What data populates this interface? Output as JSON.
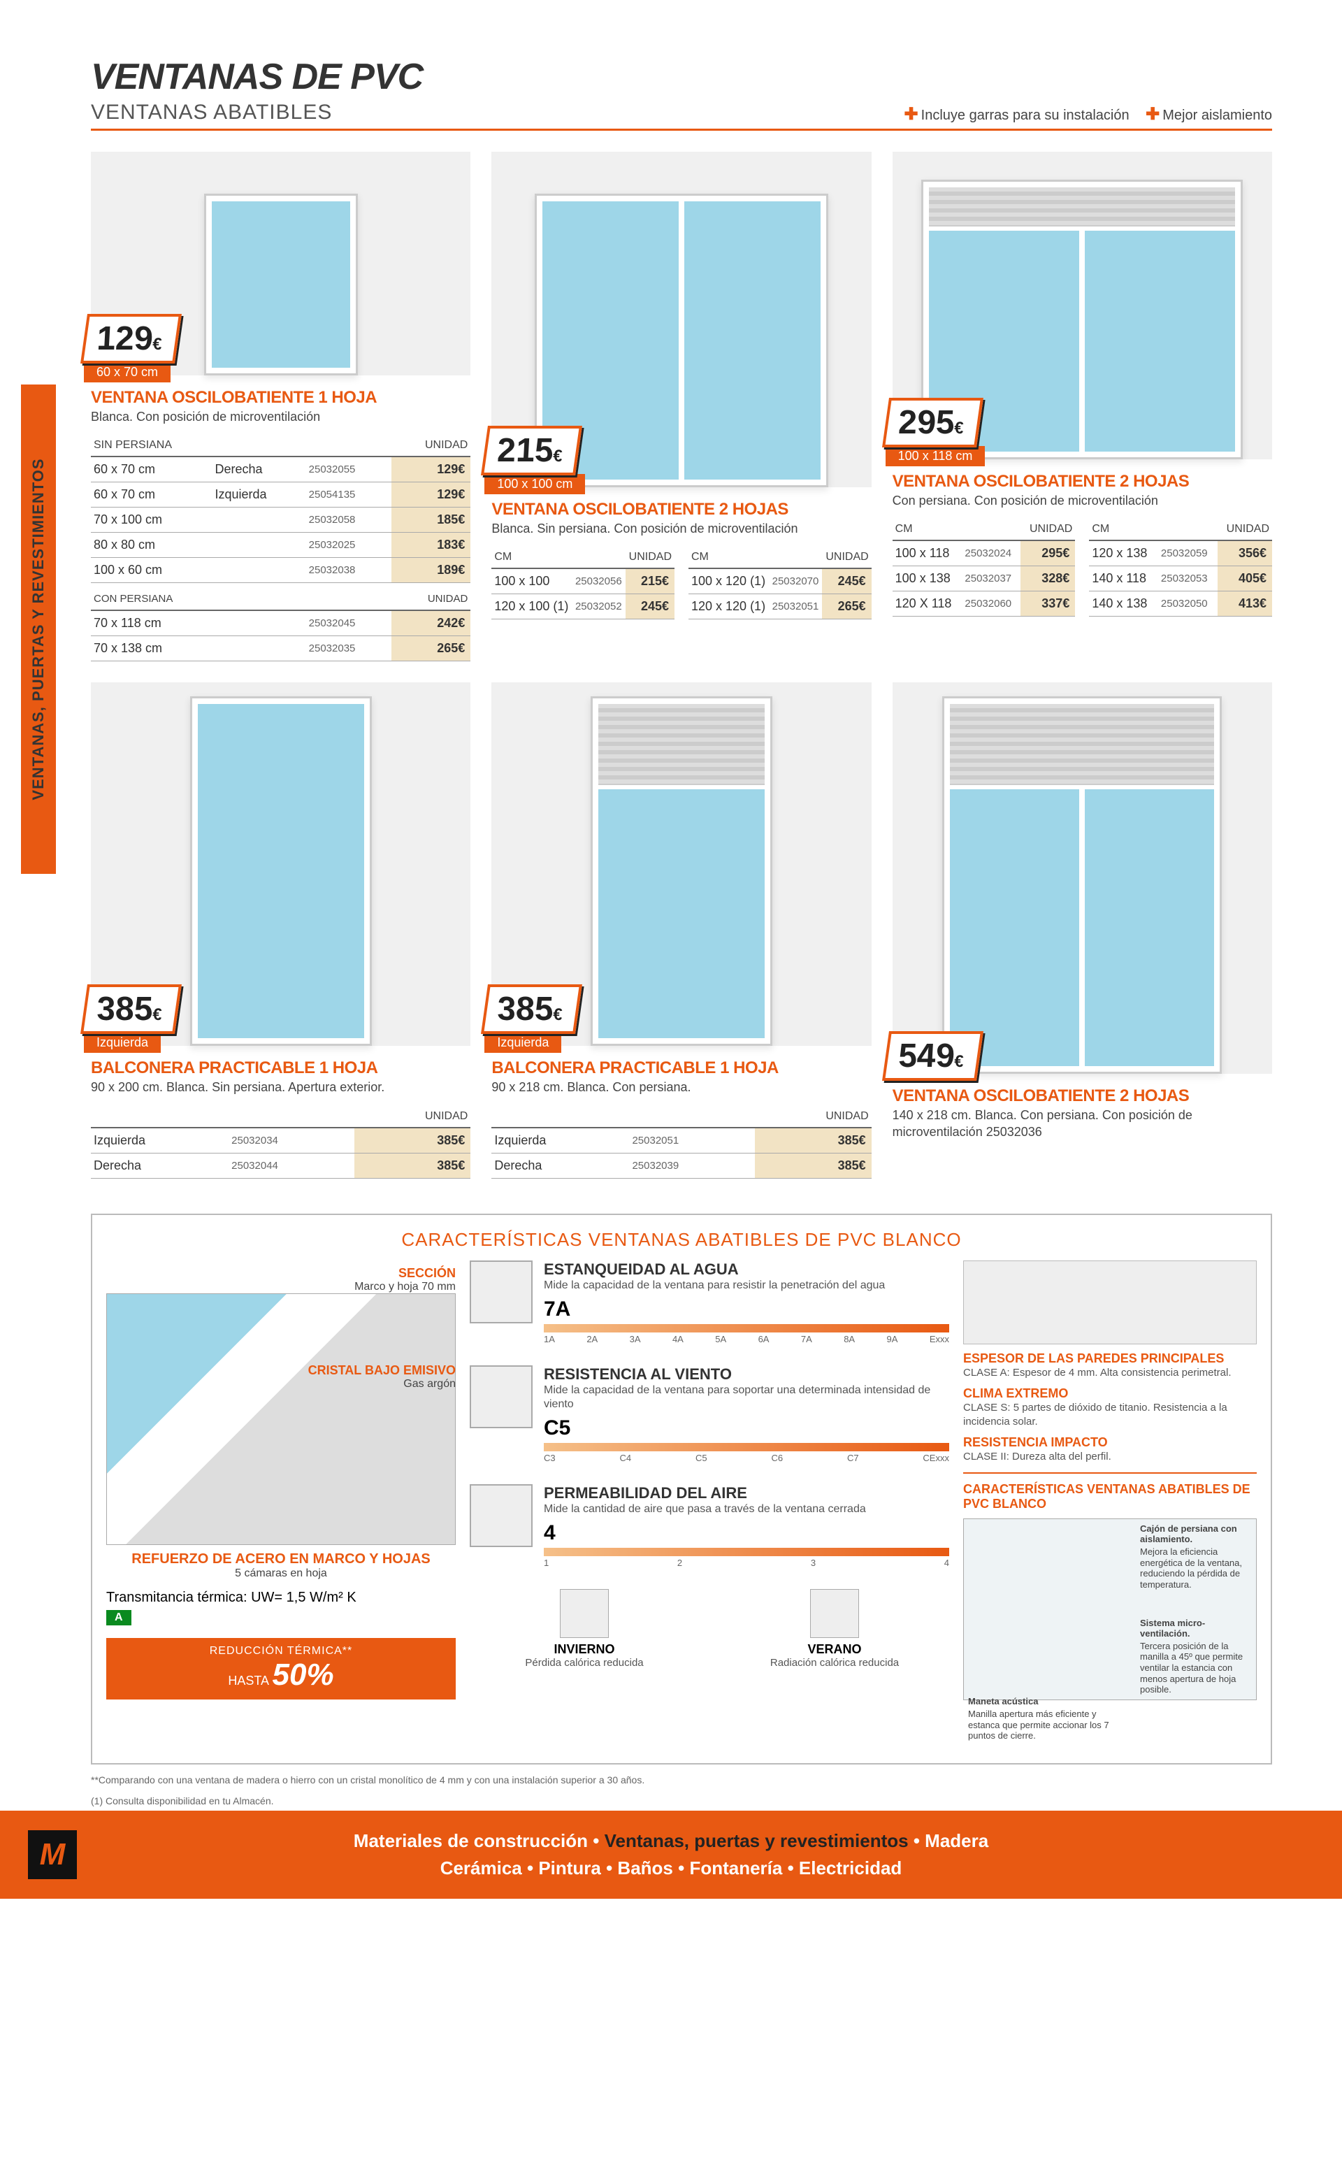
{
  "colors": {
    "accent": "#e85912",
    "glass": "#9ed6e8",
    "priceBg": "#f2e3c4"
  },
  "side_label": "VENTANAS, PUERTAS Y REVESTIMIENTOS",
  "header": {
    "title": "VENTANAS DE PVC",
    "subtitle": "VENTANAS ABATIBLES",
    "badge1": "Incluye garras para su instalación",
    "badge2": "Mejor aislamiento"
  },
  "p1": {
    "price": "129",
    "eur": "€",
    "size": "60 x 70 cm",
    "title": "VENTANA OSCILOBATIENTE 1 HOJA",
    "desc": "Blanca. Con posición de microventilación",
    "group1_label": "SIN PERSIANA",
    "unit": "UNIDAD",
    "rows1": [
      [
        "60 x 70 cm",
        "Derecha",
        "25032055",
        "129€"
      ],
      [
        "60 x 70 cm",
        "Izquierda",
        "25054135",
        "129€"
      ],
      [
        "70 x 100 cm",
        "",
        "25032058",
        "185€"
      ],
      [
        "80 x 80 cm",
        "",
        "25032025",
        "183€"
      ],
      [
        "100 x 60 cm",
        "",
        "25032038",
        "189€"
      ]
    ],
    "group2_label": "CON PERSIANA",
    "rows2": [
      [
        "70 x 118 cm",
        "",
        "25032045",
        "242€"
      ],
      [
        "70 x 138 cm",
        "",
        "25032035",
        "265€"
      ]
    ]
  },
  "p2": {
    "price": "215",
    "eur": "€",
    "size": "100 x 100 cm",
    "title": "VENTANA OSCILOBATIENTE 2 HOJAS",
    "desc": "Blanca. Sin persiana. Con posición de microventilación",
    "h1": "CM",
    "h2": "UNIDAD",
    "h3": "CM",
    "h4": "UNIDAD",
    "rowsL": [
      [
        "100 x 100",
        "25032056",
        "215€"
      ],
      [
        "120 x 100 (1)",
        "25032052",
        "245€"
      ]
    ],
    "rowsR": [
      [
        "100 x 120 (1)",
        "25032070",
        "245€"
      ],
      [
        "120 x 120 (1)",
        "25032051",
        "265€"
      ]
    ]
  },
  "p3": {
    "price": "295",
    "eur": "€",
    "size": "100 x 118 cm",
    "title": "VENTANA OSCILOBATIENTE  2 HOJAS",
    "desc": "Con persiana. Con posición de microventilación",
    "h1": "CM",
    "h2": "UNIDAD",
    "h3": "CM",
    "h4": "UNIDAD",
    "rowsL": [
      [
        "100 x 118",
        "25032024",
        "295€"
      ],
      [
        "100 x 138",
        "25032037",
        "328€"
      ],
      [
        "120 X 118",
        "25032060",
        "337€"
      ]
    ],
    "rowsR": [
      [
        "120 x 138",
        "25032059",
        "356€"
      ],
      [
        "140 x 118",
        "25032053",
        "405€"
      ],
      [
        "140 x 138",
        "25032050",
        "413€"
      ]
    ]
  },
  "p4": {
    "price": "385",
    "eur": "€",
    "size": "Izquierda",
    "title": "BALCONERA PRACTICABLE 1 HOJA",
    "desc": "90 x 200 cm. Blanca. Sin persiana. Apertura exterior.",
    "unit": "UNIDAD",
    "rows": [
      [
        "Izquierda",
        "25032034",
        "385€"
      ],
      [
        "Derecha",
        "25032044",
        "385€"
      ]
    ]
  },
  "p5": {
    "price": "385",
    "eur": "€",
    "size": "Izquierda",
    "title": "BALCONERA PRACTICABLE 1 HOJA",
    "desc": "90 x 218 cm. Blanca. Con persiana.",
    "unit": "UNIDAD",
    "rows": [
      [
        "Izquierda",
        "25032051",
        "385€"
      ],
      [
        "Derecha",
        "25032039",
        "385€"
      ]
    ]
  },
  "p6": {
    "price": "549",
    "eur": "€",
    "title": "VENTANA OSCILOBATIENTE 2 HOJAS",
    "desc": "140 x 218 cm. Blanca. Con persiana. Con posición de microventilación 25032036"
  },
  "features": {
    "title": "CARACTERÍSTICAS VENTANAS ABATIBLES DE PVC BLANCO",
    "left": {
      "l_section": "SECCIÓN",
      "l_section_sub": "Marco y hoja 70 mm",
      "l_crystal": "CRISTAL BAJO EMISIVO",
      "l_crystal_sub": "Gas argón",
      "l_reforce": "REFUERZO DE ACERO EN MARCO Y HOJAS",
      "l_reforce_sub": "5 cámaras en hoja",
      "trans": "Transmitancia térmica: UW= 1,5 W/m² K",
      "green": "A",
      "red_small": "REDUCCIÓN TÉRMICA**",
      "red_pre": "HASTA",
      "red_big": "50%"
    },
    "ratings": [
      {
        "title": "ESTANQUEIDAD AL AGUA",
        "desc": "Mide la capacidad de la ventana para resistir la penetración del agua",
        "score": "7A",
        "labels": [
          "1A",
          "2A",
          "3A",
          "4A",
          "5A",
          "6A",
          "7A",
          "8A",
          "9A",
          "Exxx"
        ]
      },
      {
        "title": "RESISTENCIA AL VIENTO",
        "desc": "Mide la capacidad de la ventana para soportar una determinada intensidad de viento",
        "score": "C5",
        "labels": [
          "C3",
          "C4",
          "C5",
          "C6",
          "C7",
          "CExxx"
        ]
      },
      {
        "title": "PERMEABILIDAD DEL AIRE",
        "desc": "Mide la cantidad de aire que pasa a través de la ventana cerrada",
        "score": "4",
        "labels": [
          "1",
          "2",
          "3",
          "4"
        ]
      }
    ],
    "seasons": [
      {
        "title": "INVIERNO",
        "sub": "Pérdida calórica reducida"
      },
      {
        "title": "VERANO",
        "sub": "Radiación calórica reducida"
      }
    ],
    "right": {
      "s1": "ESPESOR DE LAS PAREDES PRINCIPALES",
      "s1b": "CLASE A: Espesor de 4 mm. Alta consistencia perimetral.",
      "s2": "CLIMA EXTREMO",
      "s2b": "CLASE S: 5 partes de dióxido de titanio. Resistencia a la incidencia solar.",
      "s3": "RESISTENCIA IMPACTO",
      "s3b": "CLASE II: Dureza alta del perfil.",
      "sub_title": "CARACTERÍSTICAS VENTANAS ABATIBLES DE PVC BLANCO",
      "c1t": "Cajón de persiana con aislamiento.",
      "c1b": "Mejora la eficiencia energética de la ventana, reduciendo la pérdida de temperatura.",
      "c2t": "Sistema micro-ventilación.",
      "c2b": "Tercera posición de la manilla a 45º que permite ventilar la estancia con menos apertura de hoja posible.",
      "c3t": "Maneta acústica",
      "c3b": "Manilla apertura más eficiente y estanca que permite accionar los 7 puntos de cierre."
    }
  },
  "footnotes": {
    "f1": "**Comparando con una ventana de madera o hierro con un cristal monolítico de 4 mm y con una instalación superior a 30 años.",
    "f2": "(1) Consulta disponibilidad en tu Almacén."
  },
  "footer": {
    "logo": "M",
    "line1_a": "Materiales de construcción",
    "line1_b": "Ventanas, puertas y revestimientos",
    "line1_c": "Madera",
    "line2": "Cerámica   •   Pintura   •   Baños   •   Fontanería   •   Electricidad",
    "bullet": "•"
  }
}
